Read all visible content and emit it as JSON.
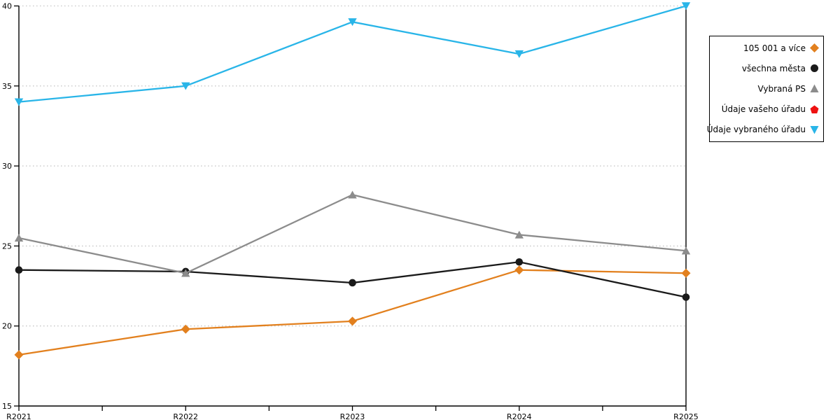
{
  "chart_data": {
    "type": "line",
    "title": "",
    "xlabel": "",
    "ylabel": "",
    "categories": [
      "R2021",
      "R2022",
      "R2023",
      "R2024",
      "R2025"
    ],
    "series": [
      {
        "name": "105 001 a více",
        "marker": "diamond",
        "color": "#E2801E",
        "values": [
          18.2,
          19.8,
          20.3,
          23.5,
          23.3
        ]
      },
      {
        "name": "všechna města",
        "marker": "circle",
        "color": "#1A1A1A",
        "values": [
          23.5,
          23.4,
          22.7,
          24.0,
          21.8
        ]
      },
      {
        "name": "Vybraná PS",
        "marker": "triangle-up",
        "color": "#8C8C8C",
        "values": [
          25.5,
          23.3,
          28.2,
          25.7,
          24.7
        ]
      },
      {
        "name": "Údaje vašeho úřadu",
        "marker": "pentagon",
        "color": "#EE1111",
        "values": null
      },
      {
        "name": "Údaje vybraného úřadu",
        "marker": "triangle-down",
        "color": "#29B5E8",
        "values": [
          34.0,
          35.0,
          39.0,
          37.0,
          40.0
        ]
      }
    ],
    "ylim": [
      15,
      40
    ],
    "yticks": [
      15,
      20,
      25,
      30,
      35,
      40
    ],
    "grid": "horizontal-dotted",
    "grid_color": "#BBBBBB",
    "axis_color": "#000000",
    "minor_xticks_between_labels": true,
    "legend_position": "top-right-outside"
  }
}
